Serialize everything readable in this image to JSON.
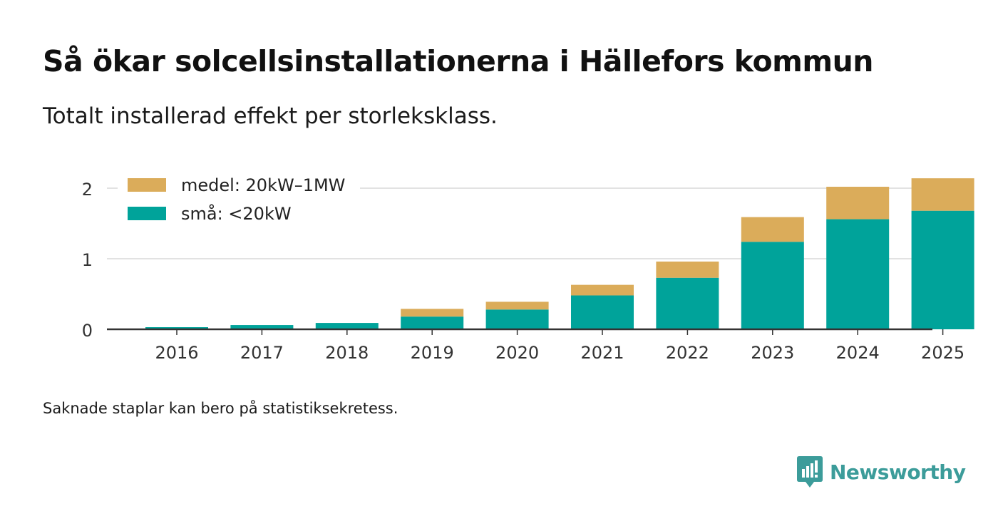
{
  "header": {
    "title": "Så ökar solcellsinstallationerna i Hällefors kommun",
    "subtitle": "Totalt installerad effekt per storleksklass."
  },
  "footnote": "Saknade staplar kan bero på statistiksekretess.",
  "brand": {
    "name": "Newsworthy",
    "color": "#3c9c9a"
  },
  "chart_data": {
    "type": "bar",
    "stacked": true,
    "title": "Så ökar solcellsinstallationerna i Hällefors kommun",
    "subtitle": "Totalt installerad effekt per storleksklass.",
    "xlabel": "",
    "ylabel": "",
    "categories": [
      "2016",
      "2017",
      "2018",
      "2019",
      "2020",
      "2021",
      "2022",
      "2023",
      "2024",
      "2025"
    ],
    "series": [
      {
        "name": "små: <20kW",
        "color": "#00a39a",
        "values": [
          0.03,
          0.06,
          0.09,
          0.18,
          0.28,
          0.48,
          0.73,
          1.24,
          1.56,
          1.68
        ]
      },
      {
        "name": "medel: 20kW–1MW",
        "color": "#dbac5a",
        "values": [
          0.0,
          0.0,
          0.0,
          0.11,
          0.11,
          0.15,
          0.23,
          0.35,
          0.46,
          0.46
        ]
      }
    ],
    "yticks": [
      0,
      1,
      2
    ],
    "ylim": [
      0,
      2.25
    ],
    "grid": true,
    "legend": {
      "position": "top-left",
      "order": [
        "medel: 20kW–1MW",
        "små: <20kW"
      ]
    }
  }
}
